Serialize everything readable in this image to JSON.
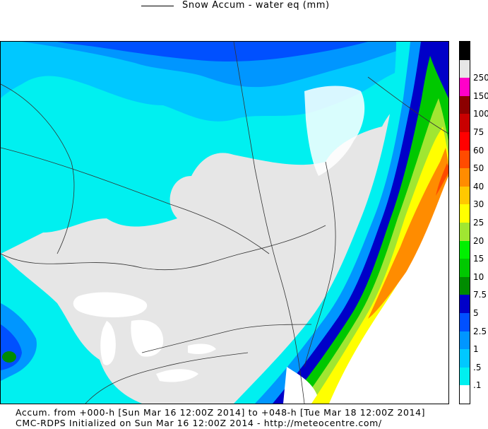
{
  "legend": {
    "label": "Snow Accum - water eq (mm)"
  },
  "color_scale": [
    {
      "label": "",
      "color": "#ffffff"
    },
    {
      "label": ".1",
      "color": "#00f0f0"
    },
    {
      "label": ".5",
      "color": "#00c8ff"
    },
    {
      "label": "1",
      "color": "#0096ff"
    },
    {
      "label": "2.5",
      "color": "#0050ff"
    },
    {
      "label": "5",
      "color": "#0000c8"
    },
    {
      "label": "7.5",
      "color": "#008c00"
    },
    {
      "label": "10",
      "color": "#00c800"
    },
    {
      "label": "15",
      "color": "#00f000"
    },
    {
      "label": "20",
      "color": "#a0e632"
    },
    {
      "label": "25",
      "color": "#ffff00"
    },
    {
      "label": "30",
      "color": "#ffc800"
    },
    {
      "label": "40",
      "color": "#ff8c00"
    },
    {
      "label": "50",
      "color": "#ff4b00"
    },
    {
      "label": "60",
      "color": "#ff0000"
    },
    {
      "label": "75",
      "color": "#c80000"
    },
    {
      "label": "100",
      "color": "#8c0000"
    },
    {
      "label": "150",
      "color": "#ff00c8"
    },
    {
      "label": "250",
      "color": "#e6e6e6"
    },
    {
      "label": "",
      "color": "#000000"
    }
  ],
  "caption": {
    "line1": "Accum. from +000-h [Sun Mar 16 12:00Z 2014] to +048-h [Tue Mar 18 12:00Z 2014]",
    "line2": "CMC-RDPS Initialized on Sun Mar 16 12:00Z 2014 - http://meteocentre.com/"
  }
}
